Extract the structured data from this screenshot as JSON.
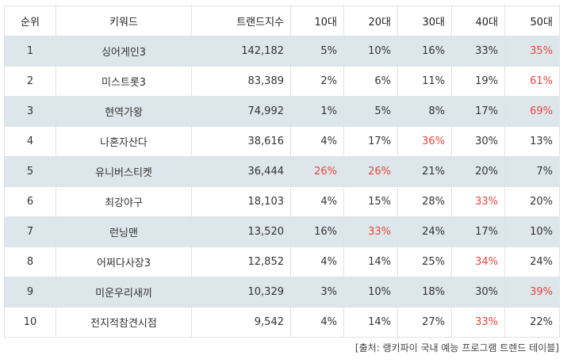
{
  "table": {
    "headers": {
      "rank": "순위",
      "keyword": "키워드",
      "trend_index": "트랜드지수",
      "age_10": "10대",
      "age_20": "20대",
      "age_30": "30대",
      "age_40": "40대",
      "age_50": "50대"
    },
    "highlight_color": "#e8453c",
    "stripe_color": "#dde6ea",
    "rows": [
      {
        "rank": "1",
        "keyword": "싱어게인3",
        "trend_index": "142,182",
        "age_10": "5%",
        "age_20": "10%",
        "age_30": "16%",
        "age_40": "33%",
        "age_50": "35%"
      },
      {
        "rank": "2",
        "keyword": "미스트롯3",
        "trend_index": "83,389",
        "age_10": "2%",
        "age_20": "6%",
        "age_30": "11%",
        "age_40": "19%",
        "age_50": "61%"
      },
      {
        "rank": "3",
        "keyword": "현역가왕",
        "trend_index": "74,992",
        "age_10": "1%",
        "age_20": "5%",
        "age_30": "8%",
        "age_40": "17%",
        "age_50": "69%"
      },
      {
        "rank": "4",
        "keyword": "나혼자산다",
        "trend_index": "38,616",
        "age_10": "4%",
        "age_20": "17%",
        "age_30": "36%",
        "age_40": "30%",
        "age_50": "13%"
      },
      {
        "rank": "5",
        "keyword": "유니버스티켓",
        "trend_index": "36,444",
        "age_10": "26%",
        "age_20": "26%",
        "age_30": "21%",
        "age_40": "20%",
        "age_50": "7%"
      },
      {
        "rank": "6",
        "keyword": "최강야구",
        "trend_index": "18,103",
        "age_10": "4%",
        "age_20": "15%",
        "age_30": "28%",
        "age_40": "33%",
        "age_50": "20%"
      },
      {
        "rank": "7",
        "keyword": "런닝맨",
        "trend_index": "13,520",
        "age_10": "16%",
        "age_20": "33%",
        "age_30": "24%",
        "age_40": "17%",
        "age_50": "10%"
      },
      {
        "rank": "8",
        "keyword": "어쩌다사장3",
        "trend_index": "12,852",
        "age_10": "4%",
        "age_20": "14%",
        "age_30": "25%",
        "age_40": "34%",
        "age_50": "24%"
      },
      {
        "rank": "9",
        "keyword": "미운우리새끼",
        "trend_index": "10,329",
        "age_10": "3%",
        "age_20": "10%",
        "age_30": "18%",
        "age_40": "30%",
        "age_50": "39%"
      },
      {
        "rank": "10",
        "keyword": "전지적참견시점",
        "trend_index": "9,542",
        "age_10": "4%",
        "age_20": "14%",
        "age_30": "27%",
        "age_40": "33%",
        "age_50": "22%"
      }
    ],
    "highlighted_cells": [
      {
        "row": 0,
        "col": "age_50"
      },
      {
        "row": 1,
        "col": "age_50"
      },
      {
        "row": 2,
        "col": "age_50"
      },
      {
        "row": 3,
        "col": "age_30"
      },
      {
        "row": 4,
        "col": "age_10"
      },
      {
        "row": 4,
        "col": "age_20"
      },
      {
        "row": 5,
        "col": "age_40"
      },
      {
        "row": 6,
        "col": "age_20"
      },
      {
        "row": 7,
        "col": "age_40"
      },
      {
        "row": 8,
        "col": "age_50"
      },
      {
        "row": 9,
        "col": "age_40"
      }
    ]
  },
  "source": "[출처: 랭키파이 국내 예능 프로그램 트렌드 테이블]"
}
